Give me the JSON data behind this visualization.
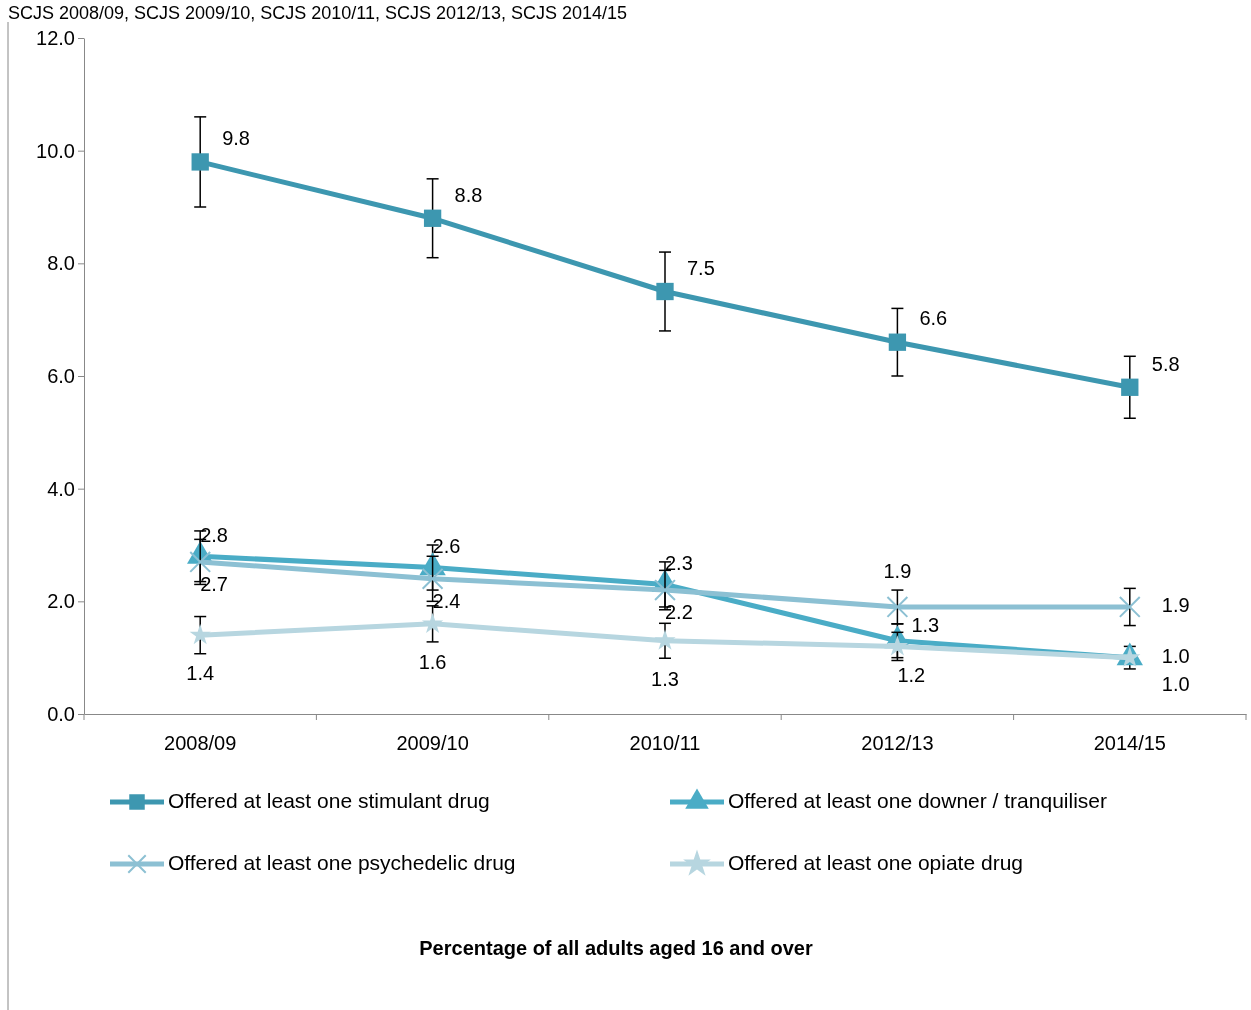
{
  "chart_data": {
    "type": "line",
    "annotations": [
      "SCJS 2008/09, SCJS 2009/10, SCJS 2010/11, SCJS 2012/13, SCJS 2014/15",
      "Percentage of all adults aged 16 and over"
    ],
    "categories": [
      "2008/09",
      "2009/10",
      "2010/11",
      "2012/13",
      "2014/15"
    ],
    "series": [
      {
        "name": "Offered at least one stimulant drug",
        "color": "#3d97b0",
        "marker": "square",
        "values": [
          9.8,
          8.8,
          7.5,
          6.6,
          5.8
        ],
        "errors": [
          0.8,
          0.7,
          0.7,
          0.6,
          0.55
        ]
      },
      {
        "name": "Offered at least one downer / tranquiliser",
        "color": "#4aacc6",
        "marker": "triangle",
        "values": [
          2.8,
          2.6,
          2.3,
          1.3,
          1.0
        ],
        "value_labels": [
          "2.8",
          "2.6",
          "2.3",
          "1.3",
          "1.0"
        ],
        "errors": [
          0.45,
          0.4,
          0.4,
          0.3,
          0.2
        ]
      },
      {
        "name": "Offered at least one psychedelic drug",
        "color": "#8cc0d3",
        "marker": "cross",
        "values": [
          2.7,
          2.4,
          2.2,
          1.9,
          1.9
        ],
        "errors": [
          0.4,
          0.4,
          0.35,
          0.3,
          0.33
        ]
      },
      {
        "name": "Offered at least one opiate drug",
        "color": "#b7d6e0",
        "marker": "star",
        "values": [
          1.4,
          1.6,
          1.3,
          1.2,
          1.0
        ],
        "value_labels": [
          "1.4",
          "1.6",
          "1.3",
          "1.2",
          "1.0"
        ],
        "errors": [
          0.33,
          0.32,
          0.31,
          0.25,
          null
        ]
      }
    ],
    "ylim": [
      0,
      12
    ],
    "yticks": [
      {
        "value": 0,
        "label": "0.0"
      },
      {
        "value": 2,
        "label": "2.0"
      },
      {
        "value": 4,
        "label": "4.0"
      },
      {
        "value": 6,
        "label": "6.0"
      },
      {
        "value": 8,
        "label": "8.0"
      },
      {
        "value": 10,
        "label": "10.0"
      },
      {
        "value": 12,
        "label": "12.0"
      }
    ],
    "data_labels": true,
    "legend": "bottom",
    "grid": false,
    "line_style": "solid"
  }
}
